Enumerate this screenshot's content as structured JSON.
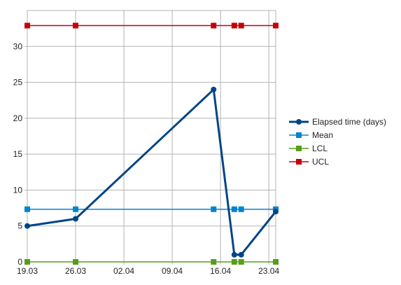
{
  "chart_data": {
    "type": "line",
    "x_dates": [
      "19.03",
      "26.03",
      "15.04",
      "18.04",
      "19.04",
      "24.04"
    ],
    "x_ticks": [
      "19.03",
      "26.03",
      "02.04",
      "09.04",
      "16.04",
      "23.04"
    ],
    "series": [
      {
        "name": "Elapsed time (days)",
        "color": "#004586",
        "values": [
          5,
          6,
          24,
          1,
          1,
          7
        ]
      },
      {
        "name": "Mean",
        "color": "#0084d1",
        "values": [
          7.33,
          7.33,
          7.33,
          7.33,
          7.33,
          7.33
        ]
      },
      {
        "name": "LCL",
        "color": "#579d1c",
        "values": [
          0,
          0,
          0,
          0,
          0,
          0
        ]
      },
      {
        "name": "UCL",
        "color": "#c5000b",
        "values": [
          32.9,
          32.9,
          32.9,
          32.9,
          32.9,
          32.9
        ]
      }
    ],
    "y_ticks": [
      "0",
      "5",
      "10",
      "15",
      "20",
      "25",
      "30"
    ],
    "ylim": [
      0,
      35
    ],
    "grid": true,
    "legend": "right"
  }
}
